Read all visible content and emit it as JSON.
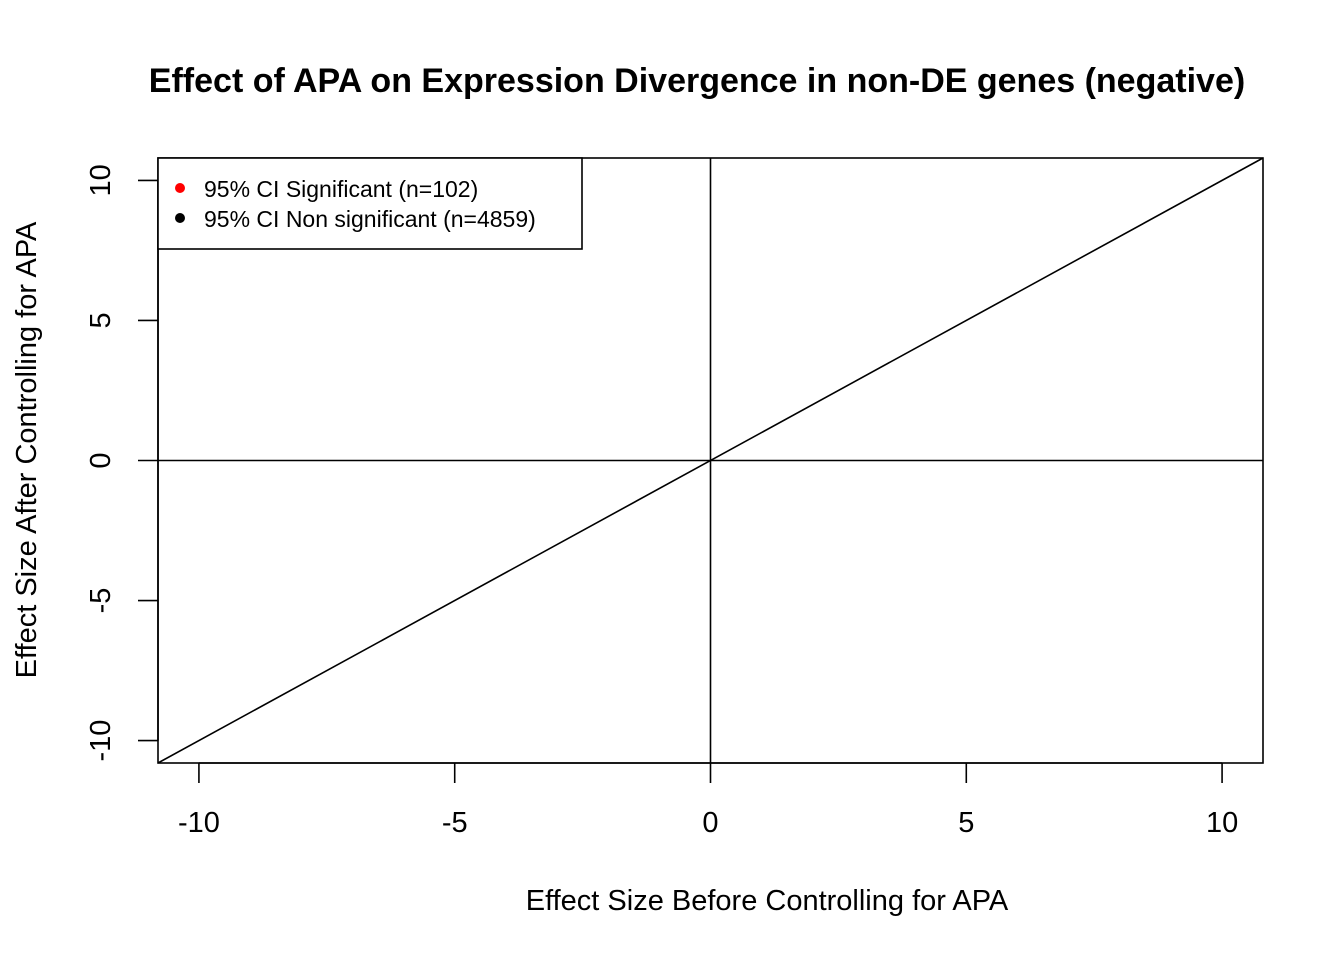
{
  "chart_data": {
    "type": "scatter",
    "title": "Effect of APA on Expression Divergence in non-DE genes (negative)",
    "xlabel": "Effect Size Before Controlling for APA",
    "ylabel": "Effect Size After Controlling for APA",
    "xlim": [
      -10.8,
      10.8
    ],
    "ylim": [
      -10.8,
      10.8
    ],
    "x_ticks": [
      -10,
      -5,
      0,
      5,
      10
    ],
    "y_ticks": [
      -10,
      -5,
      0,
      5,
      10
    ],
    "x_tick_labels": [
      "-10",
      "-5",
      "0",
      "5",
      "10"
    ],
    "y_tick_labels": [
      "-10",
      "-5",
      "0",
      "5",
      "10"
    ],
    "reference_lines": {
      "horizontal_at": 0,
      "vertical_at": 0,
      "diagonal": {
        "intercept": 0,
        "slope": 1
      }
    },
    "series": [
      {
        "name": "95% CI Significant (n=102)",
        "color": "#ff0000",
        "points": []
      },
      {
        "name": "95% CI Non significant (n=4859)",
        "color": "#000000",
        "points": []
      }
    ],
    "legend": {
      "position": "top-left",
      "entries": [
        {
          "label": "95% CI Significant (n=102)",
          "color": "#ff0000"
        },
        {
          "label": "95% CI Non significant (n=4859)",
          "color": "#000000"
        }
      ]
    },
    "grid": false
  }
}
